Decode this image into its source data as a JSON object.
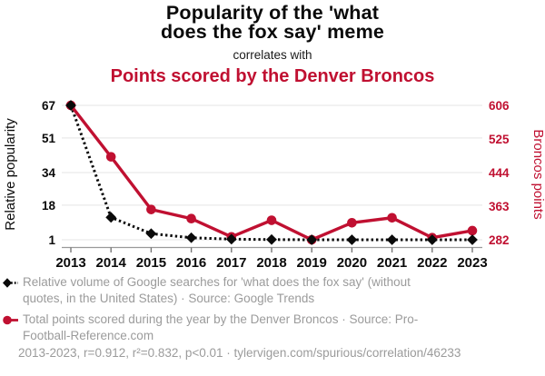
{
  "header": {
    "title_line1": "Popularity of the 'what",
    "title_line2": "does the fox say' meme",
    "connector": "correlates with",
    "subtitle": "Points scored by the Denver Broncos"
  },
  "chart_data": {
    "type": "line",
    "x": [
      2013,
      2014,
      2015,
      2016,
      2017,
      2018,
      2019,
      2020,
      2021,
      2022,
      2023
    ],
    "series": [
      {
        "name": "Relative volume of Google searches for 'what does the fox say'",
        "axis": "left",
        "color": "#0a0a0a",
        "line_style": "dotted",
        "marker": "diamond",
        "values": [
          67,
          12,
          4,
          2,
          1.3,
          1.1,
          1,
          1,
          1,
          1,
          1
        ]
      },
      {
        "name": "Total points scored during the year by the Denver Broncos",
        "axis": "right",
        "color": "#c01031",
        "line_style": "solid",
        "marker": "circle",
        "values": [
          606,
          482,
          355,
          333,
          289,
          329,
          282,
          323,
          335,
          287,
          304
        ]
      }
    ],
    "left_axis": {
      "label": "Relative popularity",
      "ticks": [
        67,
        51,
        34,
        18,
        1
      ],
      "range": [
        1,
        67
      ],
      "color": "#0a0a0a"
    },
    "right_axis": {
      "label": "Broncos points",
      "ticks": [
        606,
        525,
        444,
        363,
        282
      ],
      "range": [
        282,
        606
      ],
      "color": "#c01031"
    },
    "grid": true,
    "legend_position": "bottom"
  },
  "legend": {
    "items": [
      {
        "label": "Relative volume of Google searches for 'what does the fox say' (without quotes, in the United States) · Source: Google Trends"
      },
      {
        "label": "Total points scored during the year by the Denver Broncos · Source: Pro-Football-Reference.com"
      }
    ]
  },
  "footer": {
    "stats": "2013-2023, r=0.912, r²=0.832, p<0.01 · tylervigen.com/spurious/correlation/46233"
  },
  "colors": {
    "accent_red": "#c01031",
    "text_gray": "#9b9b9b",
    "grid_gray": "#eaeaea",
    "axis_gray": "#9a9a9a"
  }
}
